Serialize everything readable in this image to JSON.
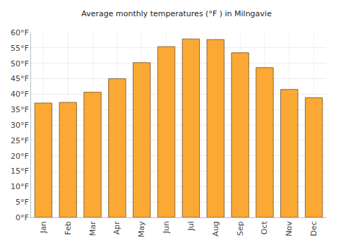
{
  "chart_data": {
    "type": "bar",
    "title": "Average monthly temperatures (°F ) in Milngavie",
    "categories": [
      "Jan",
      "Feb",
      "Mar",
      "Apr",
      "May",
      "Jun",
      "Jul",
      "Aug",
      "Sep",
      "Oct",
      "Nov",
      "Dec"
    ],
    "values": [
      37.1,
      37.3,
      40.6,
      45.0,
      50.2,
      55.4,
      57.9,
      57.7,
      53.4,
      48.6,
      41.5,
      38.8
    ],
    "color": "#fca834",
    "ylim": [
      0,
      60
    ],
    "yticks": [
      {
        "value": 0,
        "label": "0°F"
      },
      {
        "value": 5,
        "label": "5°F"
      },
      {
        "value": 10,
        "label": "10°F"
      },
      {
        "value": 15,
        "label": "15°F"
      },
      {
        "value": 20,
        "label": "20°F"
      },
      {
        "value": 25,
        "label": "25°F"
      },
      {
        "value": 30,
        "label": "30°F"
      },
      {
        "value": 35,
        "label": "35°F"
      },
      {
        "value": 40,
        "label": "40°F"
      },
      {
        "value": 45,
        "label": "45°F"
      },
      {
        "value": 50,
        "label": "50°F"
      },
      {
        "value": 55,
        "label": "55°F"
      },
      {
        "value": 60,
        "label": "60°F"
      }
    ],
    "grid": true
  }
}
